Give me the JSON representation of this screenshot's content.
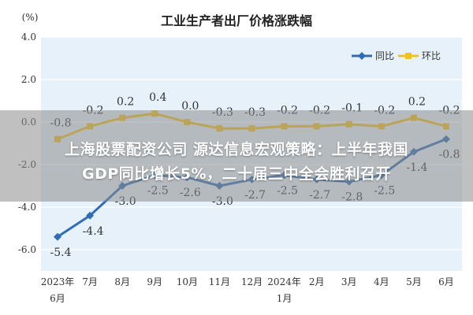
{
  "chart_data": {
    "type": "line",
    "title": "工业生产者出厂价格涨跌幅",
    "ylabel": "(%)",
    "xlabel": "",
    "ylim": [
      -7.0,
      4.0
    ],
    "yticks": [
      "4.0",
      "2.0",
      "0.0",
      "-2.0",
      "-4.0",
      "-6.0"
    ],
    "ytick_values": [
      4.0,
      2.0,
      0.0,
      -2.0,
      -4.0,
      -6.0
    ],
    "grid": true,
    "legend_position": "top-right",
    "categories": [
      {
        "line1": "2023年",
        "line2": "6月"
      },
      {
        "line1": "7月",
        "line2": ""
      },
      {
        "line1": "8月",
        "line2": ""
      },
      {
        "line1": "9月",
        "line2": ""
      },
      {
        "line1": "10月",
        "line2": ""
      },
      {
        "line1": "11月",
        "line2": ""
      },
      {
        "line1": "12月",
        "line2": ""
      },
      {
        "line1": "2024年",
        "line2": "1月"
      },
      {
        "line1": "2月",
        "line2": ""
      },
      {
        "line1": "3月",
        "line2": ""
      },
      {
        "line1": "4月",
        "line2": ""
      },
      {
        "line1": "5月",
        "line2": ""
      },
      {
        "line1": "6月",
        "line2": ""
      }
    ],
    "series": [
      {
        "name": "同比",
        "color": "#2f6db5",
        "values": [
          -5.4,
          -4.4,
          -3.0,
          -2.5,
          -2.6,
          -3.0,
          -2.7,
          -2.5,
          -2.7,
          -2.8,
          -2.5,
          -1.4,
          -0.8
        ],
        "labels": [
          "-5.4",
          "-4.4",
          "-3.0",
          "-2.5",
          "-2.6",
          "-3.0",
          "-2.7",
          "-2.5",
          "-2.7",
          "-2.8",
          "-2.5",
          "-1.4",
          "-0.8"
        ]
      },
      {
        "name": "环比",
        "color": "#f2c21b",
        "values": [
          -0.8,
          -0.2,
          0.2,
          0.4,
          0.0,
          -0.3,
          -0.3,
          -0.2,
          -0.2,
          -0.1,
          -0.2,
          0.2,
          -0.2
        ],
        "labels": [
          "-0.8",
          "-0.2",
          "0.2",
          "0.4",
          "0.0",
          "-0.3",
          "-0.3",
          "-0.2",
          "-0.2",
          "-0.1",
          "-0.2",
          "0.2",
          "-0.2"
        ]
      }
    ]
  },
  "colors": {
    "plot_background": "#e6f1fa",
    "grid": "#ffffff",
    "axis_text": "#333333"
  },
  "overlay": {
    "line1": "上海股票配资公司 源达信息宏观策略：上半年我国",
    "line2": "GDP同比增长5%，二十届三中全会胜利召开"
  }
}
